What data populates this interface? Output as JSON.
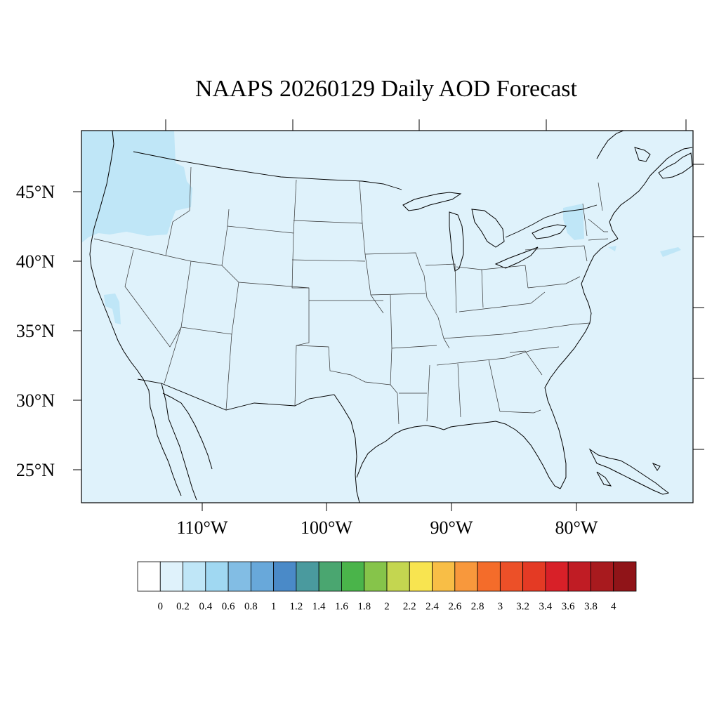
{
  "title": "NAAPS 20260129 Daily AOD Forecast",
  "colors": {
    "background_aod_0_2": "#dff2fb",
    "aod_0_2_0_4": "#bfe6f7",
    "ocean": "#dff2fb",
    "lines": "#000000"
  },
  "map": {
    "projection": "cylindrical-equidistant",
    "lon_range": [
      -119,
      -70.5
    ],
    "lat_range": [
      22.5,
      49.5
    ],
    "lat_ticks": [
      {
        "value": 45,
        "label": "45°N"
      },
      {
        "value": 40,
        "label": "40°N"
      },
      {
        "value": 35,
        "label": "35°N"
      },
      {
        "value": 30,
        "label": "30°N"
      },
      {
        "value": 25,
        "label": "25°N"
      }
    ],
    "lon_ticks": [
      {
        "value": -110,
        "label": "110°W"
      },
      {
        "value": -100,
        "label": "100°W"
      },
      {
        "value": -90,
        "label": "90°W"
      },
      {
        "value": -80,
        "label": "80°W"
      }
    ]
  },
  "colorbar": {
    "colors": [
      "#ffffff",
      "#dff2fb",
      "#bfe6f7",
      "#a0d8f2",
      "#82bde4",
      "#68a8da",
      "#4a8ac8",
      "#4a9a9e",
      "#4aa670",
      "#4ab44a",
      "#86c44a",
      "#c4d650",
      "#f8e450",
      "#f8be46",
      "#f8983c",
      "#f46c2a",
      "#ec5028",
      "#e43a24",
      "#d82028",
      "#c01c24",
      "#a81a1e",
      "#901418"
    ],
    "labels": [
      "0",
      "0.2",
      "0.4",
      "0.6",
      "0.8",
      "1",
      "1.2",
      "1.4",
      "1.6",
      "1.8",
      "2",
      "2.2",
      "2.4",
      "2.6",
      "2.8",
      "3",
      "3.2",
      "3.4",
      "3.6",
      "3.8",
      "4"
    ]
  }
}
